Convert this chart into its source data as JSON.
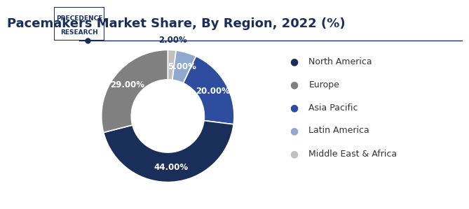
{
  "title": "Pacemakers Market Share, By Region, 2022 (%)",
  "labels": [
    "North America",
    "Europe",
    "Asia Pacific",
    "Latin America",
    "Middle East & Africa"
  ],
  "values": [
    44,
    29,
    20,
    5,
    2
  ],
  "colors": [
    "#1a2e5a",
    "#808080",
    "#2e4d9e",
    "#8fa8d0",
    "#c0c0c0"
  ],
  "pct_labels": [
    "44.00%",
    "29.00%",
    "20.00%",
    "5.00%",
    "2.00%"
  ],
  "bg_color": "#ffffff",
  "title_color": "#1a2e5a",
  "title_fontsize": 13,
  "logo_text_line1": "PRECEDENCE",
  "logo_text_line2": "RESEARCH",
  "legend_fontsize": 9,
  "pct_fontsize": 8.5,
  "donut_width": 0.45
}
